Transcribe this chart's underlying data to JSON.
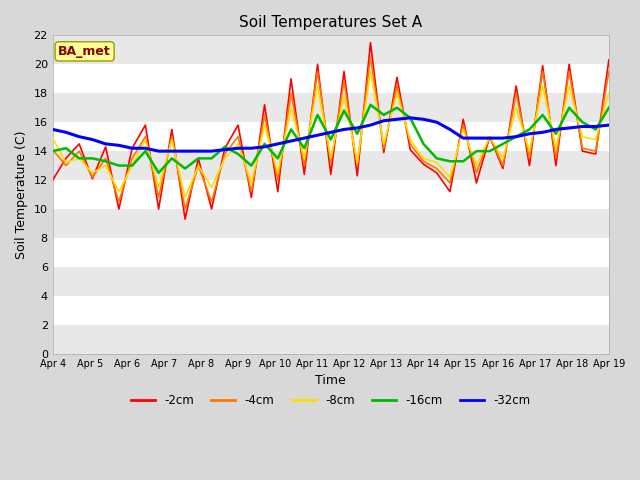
{
  "title": "Soil Temperatures Set A",
  "xlabel": "Time",
  "ylabel": "Soil Temperature (C)",
  "ylim": [
    0,
    22
  ],
  "yticks": [
    0,
    2,
    4,
    6,
    8,
    10,
    12,
    14,
    16,
    18,
    20,
    22
  ],
  "x_labels": [
    "Apr 4",
    "Apr 5",
    "Apr 6",
    "Apr 7",
    "Apr 8",
    "Apr 9",
    "Apr 10",
    "Apr 11",
    "Apr 12",
    "Apr 13",
    "Apr 14",
    "Apr 15",
    "Apr 16",
    "Apr 17",
    "Apr 18",
    "Apr 19"
  ],
  "annotation_text": "BA_met",
  "annotation_color": "#8B0000",
  "annotation_bg": "#FFFF99",
  "outer_bg": "#D8D8D8",
  "plot_bg": "#FFFFFF",
  "line_colors": {
    "-2cm": "#FF0000",
    "-4cm": "#FF7700",
    "-8cm": "#FFDD00",
    "-16cm": "#00BB00",
    "-32cm": "#0000FF"
  },
  "line_widths": {
    "-2cm": 1.2,
    "-4cm": 1.2,
    "-8cm": 1.2,
    "-16cm": 1.8,
    "-32cm": 2.2
  },
  "band_colors": [
    "#E8E8E8",
    "#FFFFFF"
  ],
  "series": {
    "-2cm": [
      12.0,
      13.5,
      14.5,
      12.1,
      14.3,
      10.0,
      14.2,
      15.8,
      10.0,
      15.5,
      9.3,
      13.5,
      10.0,
      14.2,
      15.8,
      10.8,
      17.2,
      11.2,
      19.0,
      12.4,
      20.0,
      12.4,
      19.5,
      12.3,
      21.5,
      13.9,
      19.1,
      14.1,
      13.1,
      12.5,
      11.2,
      16.2,
      11.8,
      15.0,
      12.8,
      18.5,
      13.0,
      19.9,
      13.0,
      20.0,
      14.0,
      13.8,
      20.3
    ],
    "-4cm": [
      14.1,
      13.0,
      14.0,
      12.2,
      13.5,
      10.5,
      13.5,
      15.0,
      10.8,
      15.0,
      10.0,
      13.0,
      10.5,
      13.8,
      15.0,
      11.2,
      16.5,
      12.0,
      18.0,
      13.0,
      19.5,
      13.2,
      18.8,
      13.0,
      20.5,
      14.2,
      18.5,
      14.5,
      13.3,
      12.8,
      11.8,
      15.8,
      12.5,
      15.0,
      13.0,
      18.0,
      13.5,
      19.5,
      13.5,
      19.5,
      14.2,
      14.0,
      19.5
    ],
    "-8cm": [
      14.9,
      13.2,
      13.5,
      12.5,
      13.0,
      11.2,
      13.0,
      14.8,
      11.5,
      14.8,
      10.8,
      13.0,
      11.5,
      13.5,
      14.5,
      11.8,
      15.8,
      12.5,
      17.0,
      13.5,
      18.5,
      13.5,
      17.8,
      13.2,
      19.5,
      14.5,
      18.0,
      14.8,
      13.5,
      13.2,
      12.2,
      15.5,
      13.0,
      15.0,
      13.5,
      17.0,
      14.0,
      18.5,
      14.2,
      18.5,
      15.0,
      14.8,
      18.0
    ],
    "-16cm": [
      14.0,
      14.2,
      13.5,
      13.5,
      13.3,
      13.0,
      13.0,
      14.0,
      12.5,
      13.5,
      12.8,
      13.5,
      13.5,
      14.3,
      13.8,
      13.0,
      14.5,
      13.5,
      15.5,
      14.2,
      16.5,
      14.8,
      16.8,
      15.2,
      17.2,
      16.5,
      17.0,
      16.3,
      14.5,
      13.5,
      13.3,
      13.3,
      14.0,
      14.0,
      14.5,
      15.0,
      15.5,
      16.5,
      15.2,
      17.0,
      16.0,
      15.5,
      17.0
    ],
    "-32cm": [
      15.5,
      15.3,
      15.0,
      14.8,
      14.5,
      14.4,
      14.2,
      14.2,
      14.0,
      14.0,
      14.0,
      14.0,
      14.0,
      14.1,
      14.2,
      14.2,
      14.3,
      14.5,
      14.7,
      14.9,
      15.1,
      15.3,
      15.5,
      15.6,
      15.8,
      16.1,
      16.2,
      16.3,
      16.2,
      16.0,
      15.5,
      14.9,
      14.9,
      14.9,
      14.9,
      15.0,
      15.2,
      15.3,
      15.5,
      15.6,
      15.7,
      15.7,
      15.8
    ]
  }
}
